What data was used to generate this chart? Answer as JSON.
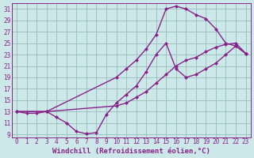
{
  "xlabel": "Windchill (Refroidissement éolien,°C)",
  "bg_color": "#cce8e8",
  "line_color": "#882288",
  "grid_color": "#99bbbb",
  "xlim": [
    -0.5,
    23.5
  ],
  "ylim": [
    8.5,
    32
  ],
  "xticks": [
    0,
    1,
    2,
    3,
    4,
    5,
    6,
    7,
    8,
    9,
    10,
    11,
    12,
    13,
    14,
    15,
    16,
    17,
    18,
    19,
    20,
    21,
    22,
    23
  ],
  "yticks": [
    9,
    11,
    13,
    15,
    17,
    19,
    21,
    23,
    25,
    27,
    29,
    31
  ],
  "curve1_x": [
    0,
    1,
    2,
    3,
    4,
    5,
    6,
    7,
    8,
    9,
    10,
    11,
    12,
    13,
    14,
    15,
    16,
    17,
    18,
    19,
    20,
    21,
    22,
    23
  ],
  "curve1_y": [
    13,
    12.7,
    12.7,
    13,
    12,
    11,
    9.5,
    9.1,
    9.3,
    12.5,
    14.5,
    16,
    17.5,
    20,
    23,
    25,
    20.5,
    19,
    19.5,
    20.5,
    21.5,
    23,
    24.5,
    23.2
  ],
  "curve2_x": [
    0,
    3,
    10,
    11,
    12,
    13,
    14,
    15,
    16,
    17,
    18,
    19,
    20,
    21,
    22,
    23
  ],
  "curve2_y": [
    13,
    13,
    19,
    20.5,
    22,
    24,
    26.5,
    31,
    31.5,
    31,
    30,
    29.3,
    27.5,
    25,
    24.5,
    23.2
  ],
  "curve3_x": [
    0,
    3,
    10,
    11,
    12,
    13,
    14,
    15,
    16,
    17,
    18,
    19,
    20,
    21,
    22,
    23
  ],
  "curve3_y": [
    13,
    13,
    14,
    14.5,
    15.5,
    16.5,
    18,
    19.5,
    21,
    22,
    22.5,
    23.5,
    24.3,
    24.8,
    25,
    23.2
  ],
  "marker": "D",
  "markersize": 2.5,
  "linewidth": 1.0,
  "xlabel_fontsize": 6.5,
  "tick_fontsize": 5.5
}
